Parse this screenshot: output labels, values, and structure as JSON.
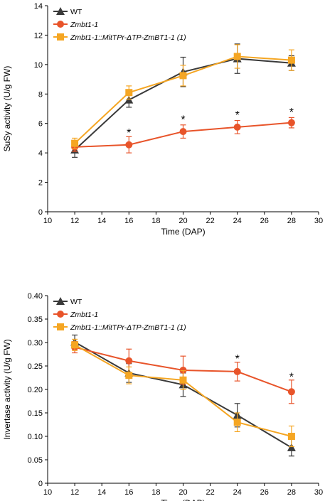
{
  "chart_data": [
    {
      "type": "line",
      "xlabel": "Time (DAP)",
      "ylabel": "SuSy activity (U/g FW)",
      "xlim": [
        10,
        30
      ],
      "ylim": [
        0,
        14
      ],
      "xticks": [
        10,
        12,
        14,
        16,
        18,
        20,
        22,
        24,
        26,
        28,
        30
      ],
      "yticks": [
        0,
        2,
        4,
        6,
        8,
        10,
        12,
        14
      ],
      "grid": false,
      "legend": "top-left",
      "x": [
        12,
        16,
        20,
        24,
        28
      ],
      "series": [
        {
          "name": "WT",
          "italic": false,
          "color": "#3a3a3a",
          "marker": "triangle",
          "values": [
            4.2,
            7.6,
            9.5,
            10.4,
            10.1
          ],
          "errors": [
            0.5,
            0.5,
            1.0,
            1.0,
            0.5
          ]
        },
        {
          "name": "Zmbt1-1",
          "italic": true,
          "color": "#e8542a",
          "marker": "circle",
          "values": [
            4.4,
            4.55,
            5.45,
            5.75,
            6.05
          ],
          "errors": [
            0.3,
            0.55,
            0.45,
            0.45,
            0.35
          ]
        },
        {
          "name": "Zmbt1-1::MitTPr-ΔTP-ZmBT1-1 (1)",
          "italic": true,
          "color": "#f5a623",
          "marker": "square",
          "values": [
            4.65,
            8.1,
            9.25,
            10.55,
            10.3
          ],
          "errors": [
            0.35,
            0.45,
            0.7,
            0.8,
            0.7
          ]
        }
      ],
      "annotations": [
        {
          "text": "*",
          "x": 16,
          "y": 5.5
        },
        {
          "text": "*",
          "x": 20,
          "y": 6.4
        },
        {
          "text": "*",
          "x": 24,
          "y": 6.7
        },
        {
          "text": "*",
          "x": 28,
          "y": 6.9
        }
      ]
    },
    {
      "type": "line",
      "xlabel": "Time (DAP)",
      "ylabel": "Invertase activity (U/g FW)",
      "xlim": [
        10,
        30
      ],
      "ylim": [
        0,
        0.4
      ],
      "xticks": [
        10,
        12,
        14,
        16,
        18,
        20,
        22,
        24,
        26,
        28,
        30
      ],
      "yticks": [
        "0",
        "0.05",
        "0.10",
        "0.15",
        "0.20",
        "0.25",
        "0.30",
        "0.35",
        "0.40"
      ],
      "grid": false,
      "legend": "top-left",
      "x": [
        12,
        16,
        20,
        24,
        28
      ],
      "series": [
        {
          "name": "WT",
          "italic": false,
          "color": "#3a3a3a",
          "marker": "triangle",
          "values": [
            0.301,
            0.235,
            0.21,
            0.145,
            0.076
          ],
          "errors": [
            0.015,
            0.02,
            0.025,
            0.025,
            0.018
          ]
        },
        {
          "name": "Zmbt1-1",
          "italic": true,
          "color": "#e8542a",
          "marker": "circle",
          "values": [
            0.29,
            0.261,
            0.241,
            0.238,
            0.195
          ],
          "errors": [
            0.012,
            0.025,
            0.03,
            0.02,
            0.025
          ]
        },
        {
          "name": "Zmbt1-1::MitTPr-ΔTP-ZmBT1-1 (1)",
          "italic": true,
          "color": "#f5a623",
          "marker": "square",
          "values": [
            0.295,
            0.23,
            0.22,
            0.13,
            0.1
          ],
          "errors": [
            0.012,
            0.018,
            0.02,
            0.02,
            0.022
          ]
        }
      ],
      "annotations": [
        {
          "text": "*",
          "x": 24,
          "y": 0.27
        },
        {
          "text": "*",
          "x": 28,
          "y": 0.231
        }
      ]
    }
  ]
}
